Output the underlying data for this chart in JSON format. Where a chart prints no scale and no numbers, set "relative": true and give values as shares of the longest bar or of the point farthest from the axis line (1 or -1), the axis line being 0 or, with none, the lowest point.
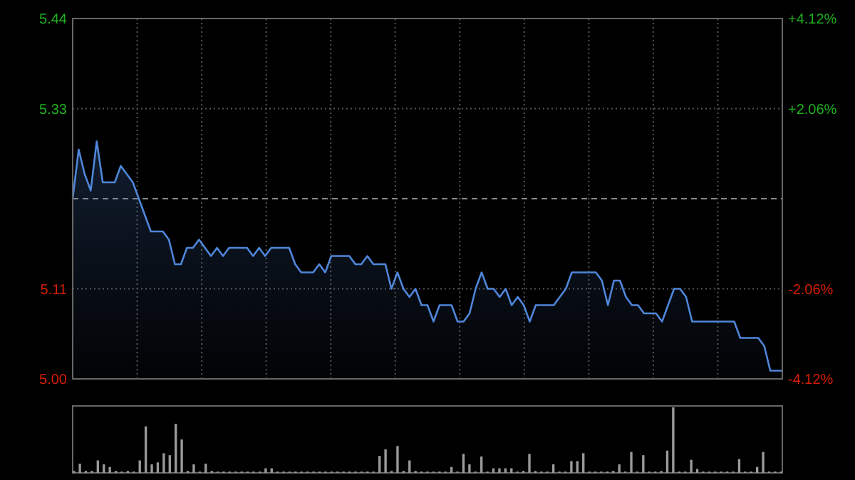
{
  "chart_data": [
    {
      "type": "area",
      "categories": [
        null,
        null,
        null,
        null,
        null,
        null,
        null,
        null,
        null,
        null,
        null,
        null,
        null,
        null,
        null,
        null,
        null,
        null,
        null,
        null,
        null,
        null,
        null,
        null,
        null,
        null,
        null,
        null,
        null,
        null,
        null,
        null,
        null,
        null,
        null,
        null,
        null,
        null,
        null,
        null,
        null,
        null,
        null,
        null,
        null,
        null,
        null,
        null,
        null,
        null,
        null,
        null,
        null,
        null,
        null,
        null,
        null,
        null,
        null,
        null,
        null,
        null,
        null,
        null,
        null,
        null,
        null,
        null,
        null,
        null,
        null,
        null,
        null,
        null,
        null,
        null,
        null,
        null,
        null,
        null,
        null,
        null,
        null,
        null,
        null,
        null,
        null,
        null,
        null,
        null,
        null,
        null,
        null,
        null,
        null,
        null,
        null,
        null,
        null,
        null,
        null,
        null,
        null,
        null,
        null,
        null,
        null,
        null,
        null,
        null,
        null,
        null,
        null,
        null,
        null,
        null,
        null,
        null,
        null
      ],
      "series": [
        {
          "color": "#4f86d9",
          "values": [
            5.22,
            5.28,
            5.25,
            5.23,
            5.29,
            5.24,
            5.24,
            5.24,
            5.26,
            5.25,
            5.24,
            5.22,
            5.2,
            5.18,
            5.18,
            5.18,
            5.17,
            5.14,
            5.14,
            5.16,
            5.16,
            5.17,
            5.16,
            5.15,
            5.16,
            5.15,
            5.16,
            5.16,
            5.16,
            5.16,
            5.15,
            5.16,
            5.15,
            5.16,
            5.16,
            5.16,
            5.16,
            5.14,
            5.13,
            5.13,
            5.13,
            5.14,
            5.13,
            5.15,
            5.15,
            5.15,
            5.15,
            5.14,
            5.14,
            5.15,
            5.14,
            5.14,
            5.14,
            5.11,
            5.13,
            5.11,
            5.1,
            5.11,
            5.09,
            5.09,
            5.07,
            5.09,
            5.09,
            5.09,
            5.07,
            5.07,
            5.08,
            5.11,
            5.13,
            5.11,
            5.11,
            5.1,
            5.11,
            5.09,
            5.1,
            5.09,
            5.07,
            5.09,
            5.09,
            5.09,
            5.09,
            5.1,
            5.11,
            5.13,
            5.13,
            5.13,
            5.13,
            5.13,
            5.12,
            5.09,
            5.12,
            5.12,
            5.1,
            5.09,
            5.09,
            5.08,
            5.08,
            5.08,
            5.07,
            5.09,
            5.11,
            5.11,
            5.1,
            5.07,
            5.07,
            5.07,
            5.07,
            5.07,
            5.07,
            5.07,
            5.07,
            5.05,
            5.05,
            5.05,
            5.05,
            5.04,
            5.01,
            5.01,
            5.01
          ]
        }
      ],
      "ylim": [
        5.0,
        5.44
      ],
      "yticks": [
        {
          "value": 5.0,
          "label": "5.00"
        },
        5.11,
        5.33,
        5.44
      ],
      "y2lim": [
        -4.12,
        4.12
      ],
      "y2ticks": [
        {
          "value": -4.12,
          "label": "-4.12%"
        },
        {
          "value": -2.06,
          "label": "-2.06%"
        },
        {
          "value": 2.06,
          "label": "+2.06%"
        },
        {
          "value": 4.12,
          "label": "+4.12%"
        }
      ],
      "ref_lines": [
        {
          "axis": "y",
          "value": 5.22,
          "line_style": "dashed"
        }
      ],
      "grid": true
    },
    {
      "type": "bar",
      "relative": true,
      "color": "#9a9a9a",
      "categories": [
        null,
        null,
        null,
        null,
        null,
        null,
        null,
        null,
        null,
        null,
        null,
        null,
        null,
        null,
        null,
        null,
        null,
        null,
        null,
        null,
        null,
        null,
        null,
        null,
        null,
        null,
        null,
        null,
        null,
        null,
        null,
        null,
        null,
        null,
        null,
        null,
        null,
        null,
        null,
        null,
        null,
        null,
        null,
        null,
        null,
        null,
        null,
        null,
        null,
        null,
        null,
        null,
        null,
        null,
        null,
        null,
        null,
        null,
        null,
        null,
        null,
        null,
        null,
        null,
        null,
        null,
        null,
        null,
        null,
        null,
        null,
        null,
        null,
        null,
        null,
        null,
        null,
        null,
        null,
        null,
        null,
        null,
        null,
        null,
        null,
        null,
        null,
        null,
        null,
        null,
        null,
        null,
        null,
        null,
        null,
        null,
        null,
        null,
        null,
        null,
        null,
        null,
        null,
        null,
        null,
        null,
        null,
        null,
        null,
        null,
        null,
        null,
        null,
        null,
        null,
        null,
        null,
        null,
        null
      ],
      "values": [
        0.03,
        0.14,
        0.03,
        0.03,
        0.19,
        0.13,
        0.09,
        0.03,
        0.02,
        0.03,
        0.02,
        0.19,
        0.71,
        0.13,
        0.16,
        0.3,
        0.27,
        0.75,
        0.51,
        0.03,
        0.13,
        0.02,
        0.14,
        0.03,
        0.02,
        0.02,
        0.02,
        0.02,
        0.02,
        0.02,
        0.02,
        0.02,
        0.07,
        0.07,
        0.02,
        0.02,
        0.02,
        0.02,
        0.02,
        0.02,
        0.02,
        0.02,
        0.02,
        0.02,
        0.02,
        0.02,
        0.02,
        0.02,
        0.02,
        0.02,
        0.02,
        0.26,
        0.36,
        0.03,
        0.41,
        0.03,
        0.19,
        0.03,
        0.02,
        0.02,
        0.02,
        0.02,
        0.02,
        0.09,
        0.02,
        0.29,
        0.13,
        0.02,
        0.25,
        0.02,
        0.07,
        0.07,
        0.07,
        0.07,
        0.02,
        0.03,
        0.29,
        0.03,
        0.02,
        0.02,
        0.13,
        0.02,
        0.02,
        0.18,
        0.18,
        0.3,
        0.02,
        0.02,
        0.02,
        0.02,
        0.03,
        0.13,
        0.02,
        0.32,
        0.02,
        0.27,
        0.02,
        0.02,
        0.03,
        0.34,
        1,
        0.02,
        0.02,
        0.2,
        0.06,
        0.02,
        0.02,
        0.02,
        0.02,
        0.02,
        0.02,
        0.21,
        0.02,
        0.02,
        0.09,
        0.32,
        0.02,
        0.02,
        0.02
      ]
    }
  ]
}
